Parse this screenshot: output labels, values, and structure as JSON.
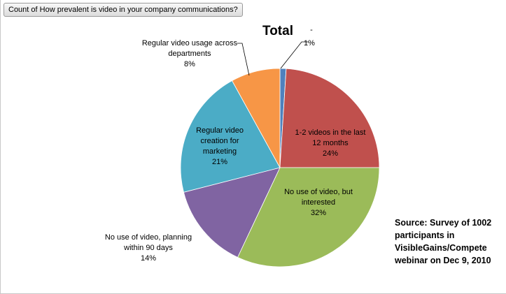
{
  "field_button": "Count of How prevalent is video in your company communications?",
  "source_note": [
    "Source:  Survey of 1002",
    "participants in",
    "VisibleGains/Compete",
    "webinar on Dec 9, 2010"
  ],
  "chart_data": {
    "type": "pie",
    "title": "Total",
    "slices": [
      {
        "name": "-",
        "lines": [
          "1%"
        ],
        "value": 1,
        "color": "#4f81bd"
      },
      {
        "name": "1-2 videos in the last 12 months",
        "lines": [
          "1-2 videos in the last",
          "12 months",
          "24%"
        ],
        "value": 24,
        "color": "#c0504d"
      },
      {
        "name": "No use of video, but interested",
        "lines": [
          "No use of video, but",
          "interested",
          "32%"
        ],
        "value": 32,
        "color": "#9bbb59"
      },
      {
        "name": "No use of video, planning within 90 days",
        "lines": [
          "No use of video, planning",
          "within 90 days",
          "14%"
        ],
        "value": 14,
        "color": "#8064a2"
      },
      {
        "name": "Regular video creation for marketing",
        "lines": [
          "Regular video",
          "creation for",
          "marketing",
          "21%"
        ],
        "value": 21,
        "color": "#4bacc6"
      },
      {
        "name": "Regular video usage across departments",
        "lines": [
          "Regular video usage across",
          "departments",
          "8%"
        ],
        "value": 8,
        "color": "#f79646"
      }
    ]
  }
}
